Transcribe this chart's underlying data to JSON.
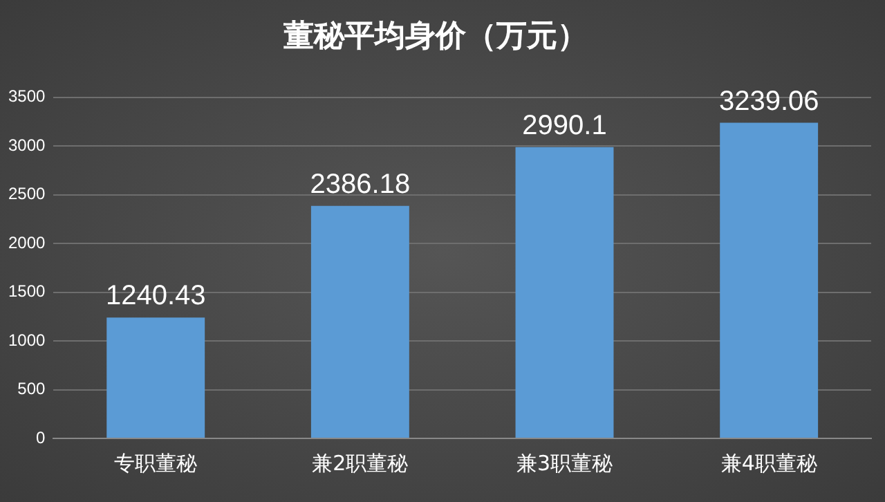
{
  "chart_data": {
    "type": "bar",
    "title": "董秘平均身价（万元）",
    "categories": [
      "专职董秘",
      "兼2职董秘",
      "兼3职董秘",
      "兼4职董秘"
    ],
    "values": [
      1240.43,
      2386.18,
      2990.1,
      3239.06
    ],
    "color": "#5b9bd5",
    "ylim": [
      0,
      3500
    ],
    "yticks": [
      0,
      500,
      1000,
      1500,
      2000,
      2500,
      3000,
      3500
    ],
    "grid": "y",
    "data_labels": true
  }
}
